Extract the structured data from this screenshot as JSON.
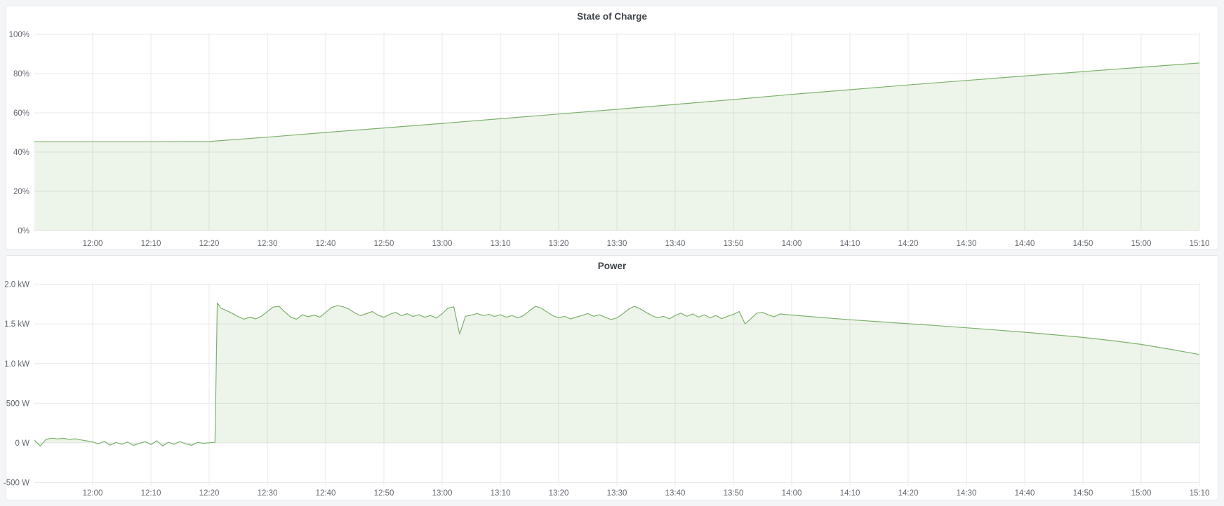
{
  "page": {
    "background": "#f4f5f7",
    "panel_background": "#ffffff",
    "panel_border": "#e3e6ea",
    "grid_color": "#e8e9eb",
    "axis_text_color": "#64686f",
    "title_text_color": "#3f4449",
    "accent_green": "#7eb26d"
  },
  "panels": [
    {
      "title": "State of Charge"
    },
    {
      "title": "Power"
    }
  ],
  "chart_data": [
    {
      "type": "area",
      "title": "State of Charge",
      "x_unit": "minutes_since_midnight",
      "x_range": [
        "11:50",
        "15:10"
      ],
      "ylim": [
        0,
        100
      ],
      "grid": true,
      "legend": "none",
      "y_ticks": [
        {
          "v": 0,
          "label": "0%"
        },
        {
          "v": 20,
          "label": "20%"
        },
        {
          "v": 40,
          "label": "40%"
        },
        {
          "v": 60,
          "label": "60%"
        },
        {
          "v": 80,
          "label": "80%"
        },
        {
          "v": 100,
          "label": "100%"
        }
      ],
      "x_ticks": [
        {
          "t": 720,
          "label": "12:00"
        },
        {
          "t": 730,
          "label": "12:10"
        },
        {
          "t": 740,
          "label": "12:20"
        },
        {
          "t": 750,
          "label": "12:30"
        },
        {
          "t": 760,
          "label": "12:40"
        },
        {
          "t": 770,
          "label": "12:50"
        },
        {
          "t": 780,
          "label": "13:00"
        },
        {
          "t": 790,
          "label": "13:10"
        },
        {
          "t": 800,
          "label": "13:20"
        },
        {
          "t": 810,
          "label": "13:30"
        },
        {
          "t": 820,
          "label": "13:40"
        },
        {
          "t": 830,
          "label": "13:50"
        },
        {
          "t": 840,
          "label": "14:00"
        },
        {
          "t": 850,
          "label": "14:10"
        },
        {
          "t": 860,
          "label": "14:20"
        },
        {
          "t": 870,
          "label": "14:30"
        },
        {
          "t": 880,
          "label": "14:40"
        },
        {
          "t": 890,
          "label": "14:50"
        },
        {
          "t": 900,
          "label": "15:00"
        },
        {
          "t": 910,
          "label": "15:10"
        }
      ],
      "series": [
        {
          "name": "State of Charge",
          "color": "#7eb26d",
          "fill_opacity": 0.14,
          "points": [
            [
              710,
              45.3
            ],
            [
              720,
              45.3
            ],
            [
              730,
              45.3
            ],
            [
              740,
              45.4
            ],
            [
              750,
              47.6
            ],
            [
              760,
              50.0
            ],
            [
              770,
              52.3
            ],
            [
              780,
              54.6
            ],
            [
              790,
              57.0
            ],
            [
              800,
              59.4
            ],
            [
              810,
              61.8
            ],
            [
              820,
              64.3
            ],
            [
              830,
              66.8
            ],
            [
              840,
              69.4
            ],
            [
              850,
              71.8
            ],
            [
              860,
              74.2
            ],
            [
              870,
              76.5
            ],
            [
              880,
              78.8
            ],
            [
              890,
              81.0
            ],
            [
              900,
              83.2
            ],
            [
              910,
              85.4
            ]
          ]
        }
      ]
    },
    {
      "type": "area",
      "title": "Power",
      "x_unit": "minutes_since_midnight",
      "x_range": [
        "11:50",
        "15:10"
      ],
      "ylim": [
        -550,
        2010
      ],
      "grid": true,
      "legend": "none",
      "y_ticks": [
        {
          "v": -500,
          "label": "-500 W"
        },
        {
          "v": 0,
          "label": "0 W"
        },
        {
          "v": 500,
          "label": "500 W"
        },
        {
          "v": 1000,
          "label": "1.0 kW"
        },
        {
          "v": 1500,
          "label": "1.5 kW"
        },
        {
          "v": 2000,
          "label": "2.0 kW"
        }
      ],
      "x_ticks": [
        {
          "t": 720,
          "label": "12:00"
        },
        {
          "t": 730,
          "label": "12:10"
        },
        {
          "t": 740,
          "label": "12:20"
        },
        {
          "t": 750,
          "label": "12:30"
        },
        {
          "t": 760,
          "label": "12:40"
        },
        {
          "t": 770,
          "label": "12:50"
        },
        {
          "t": 780,
          "label": "13:00"
        },
        {
          "t": 790,
          "label": "13:10"
        },
        {
          "t": 800,
          "label": "13:20"
        },
        {
          "t": 810,
          "label": "13:30"
        },
        {
          "t": 820,
          "label": "13:40"
        },
        {
          "t": 830,
          "label": "13:50"
        },
        {
          "t": 840,
          "label": "14:00"
        },
        {
          "t": 850,
          "label": "14:10"
        },
        {
          "t": 860,
          "label": "14:20"
        },
        {
          "t": 870,
          "label": "14:30"
        },
        {
          "t": 880,
          "label": "14:40"
        },
        {
          "t": 890,
          "label": "14:50"
        },
        {
          "t": 900,
          "label": "15:00"
        },
        {
          "t": 910,
          "label": "15:10"
        }
      ],
      "series": [
        {
          "name": "Power",
          "color": "#7eb26d",
          "fill_opacity": 0.14,
          "points": [
            [
              710,
              35
            ],
            [
              711,
              -40
            ],
            [
              712,
              45
            ],
            [
              713,
              60
            ],
            [
              714,
              50
            ],
            [
              715,
              58
            ],
            [
              716,
              44
            ],
            [
              717,
              52
            ],
            [
              718,
              38
            ],
            [
              719,
              26
            ],
            [
              720,
              12
            ],
            [
              721,
              -12
            ],
            [
              722,
              22
            ],
            [
              723,
              -28
            ],
            [
              724,
              6
            ],
            [
              725,
              -18
            ],
            [
              726,
              12
            ],
            [
              727,
              -32
            ],
            [
              728,
              -6
            ],
            [
              729,
              16
            ],
            [
              730,
              -22
            ],
            [
              731,
              28
            ],
            [
              732,
              -38
            ],
            [
              733,
              8
            ],
            [
              734,
              -16
            ],
            [
              735,
              18
            ],
            [
              736,
              -12
            ],
            [
              737,
              -30
            ],
            [
              738,
              6
            ],
            [
              739,
              -4
            ],
            [
              740,
              2
            ],
            [
              741,
              6
            ],
            [
              741.4,
              1765
            ],
            [
              742,
              1700
            ],
            [
              743,
              1668
            ],
            [
              744,
              1632
            ],
            [
              745,
              1592
            ],
            [
              746,
              1560
            ],
            [
              747,
              1586
            ],
            [
              748,
              1564
            ],
            [
              749,
              1600
            ],
            [
              750,
              1656
            ],
            [
              751,
              1712
            ],
            [
              752,
              1722
            ],
            [
              753,
              1650
            ],
            [
              754,
              1586
            ],
            [
              755,
              1560
            ],
            [
              756,
              1616
            ],
            [
              757,
              1590
            ],
            [
              758,
              1612
            ],
            [
              759,
              1586
            ],
            [
              760,
              1646
            ],
            [
              761,
              1706
            ],
            [
              762,
              1732
            ],
            [
              763,
              1716
            ],
            [
              764,
              1686
            ],
            [
              765,
              1640
            ],
            [
              766,
              1604
            ],
            [
              767,
              1630
            ],
            [
              768,
              1656
            ],
            [
              769,
              1610
            ],
            [
              770,
              1584
            ],
            [
              771,
              1620
            ],
            [
              772,
              1646
            ],
            [
              773,
              1604
            ],
            [
              774,
              1630
            ],
            [
              775,
              1594
            ],
            [
              776,
              1616
            ],
            [
              777,
              1584
            ],
            [
              778,
              1606
            ],
            [
              779,
              1574
            ],
            [
              780,
              1630
            ],
            [
              781,
              1700
            ],
            [
              782,
              1716
            ],
            [
              783,
              1372
            ],
            [
              784,
              1596
            ],
            [
              785,
              1610
            ],
            [
              786,
              1632
            ],
            [
              787,
              1604
            ],
            [
              788,
              1620
            ],
            [
              789,
              1594
            ],
            [
              790,
              1616
            ],
            [
              791,
              1584
            ],
            [
              792,
              1606
            ],
            [
              793,
              1576
            ],
            [
              794,
              1606
            ],
            [
              795,
              1666
            ],
            [
              796,
              1722
            ],
            [
              797,
              1700
            ],
            [
              798,
              1650
            ],
            [
              799,
              1604
            ],
            [
              800,
              1576
            ],
            [
              801,
              1596
            ],
            [
              802,
              1564
            ],
            [
              803,
              1586
            ],
            [
              804,
              1606
            ],
            [
              805,
              1632
            ],
            [
              806,
              1596
            ],
            [
              807,
              1616
            ],
            [
              808,
              1584
            ],
            [
              809,
              1556
            ],
            [
              810,
              1576
            ],
            [
              811,
              1626
            ],
            [
              812,
              1686
            ],
            [
              813,
              1722
            ],
            [
              814,
              1690
            ],
            [
              815,
              1646
            ],
            [
              816,
              1604
            ],
            [
              817,
              1576
            ],
            [
              818,
              1596
            ],
            [
              819,
              1564
            ],
            [
              820,
              1606
            ],
            [
              821,
              1636
            ],
            [
              822,
              1596
            ],
            [
              823,
              1626
            ],
            [
              824,
              1586
            ],
            [
              825,
              1616
            ],
            [
              826,
              1576
            ],
            [
              827,
              1606
            ],
            [
              828,
              1566
            ],
            [
              829,
              1596
            ],
            [
              830,
              1622
            ],
            [
              831,
              1656
            ],
            [
              832,
              1500
            ],
            [
              833,
              1566
            ],
            [
              834,
              1636
            ],
            [
              835,
              1646
            ],
            [
              836,
              1614
            ],
            [
              837,
              1590
            ],
            [
              838,
              1626
            ],
            [
              839,
              1618
            ],
            [
              840,
              1612
            ],
            [
              845,
              1581
            ],
            [
              850,
              1553
            ],
            [
              855,
              1528
            ],
            [
              860,
              1503
            ],
            [
              865,
              1478
            ],
            [
              870,
              1451
            ],
            [
              875,
              1424
            ],
            [
              880,
              1396
            ],
            [
              885,
              1364
            ],
            [
              890,
              1330
            ],
            [
              895,
              1290
            ],
            [
              900,
              1242
            ],
            [
              905,
              1180
            ],
            [
              910,
              1115
            ]
          ]
        }
      ]
    }
  ]
}
